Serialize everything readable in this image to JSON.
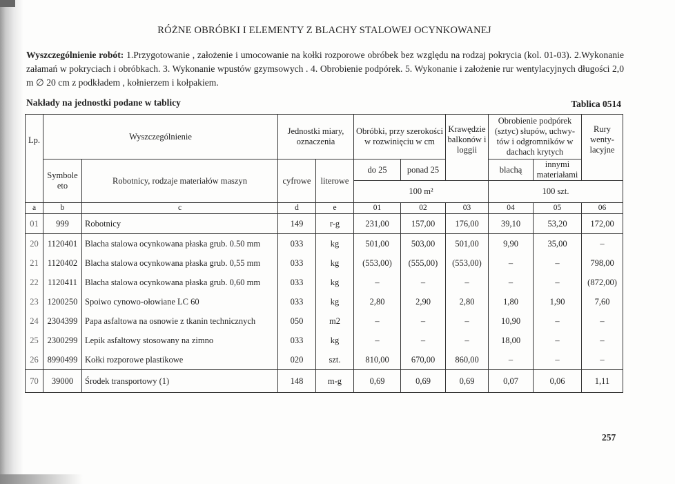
{
  "title": "RÓŻNE OBRÓBKI I ELEMENTY Z BLACHY STALOWEJ OCYNKOWANEJ",
  "description": {
    "label": "Wyszczególnienie robót:",
    "text": " 1.Przygotowanie , założenie i umocowanie na kołki rozporowe obróbek bez względu na rodzaj pokrycia (kol. 01-03). 2.Wykonanie załamań w pokryciach i obróbkach. 3. Wykonanie wpustów gzymsowych . 4. Obrobienie podpórek. 5. Wykonanie i założenie rur wentylacyjnych długości 2,0 m ∅ 20 cm z podkładem , kołnierzem i kołpakiem."
  },
  "naklady": "Nakłady na jednostki podane w tablicy",
  "tablica": "Tablica 0514",
  "header": {
    "lp": "Lp.",
    "wyszczegolnienie": "Wyszczególnienie",
    "jednostki": "Jednostki miary, oznaczenia",
    "obrobki": "Obróbki, przy szerokości w rozwinięciu w cm",
    "krawedzie": "Krawędzie balkonów i loggii",
    "obrobienie": "Obrobienie podpórek (sztyc) słupów, uchwy-tów i odgromników w dachach krytych",
    "rury": "Rury wenty-lacyjne",
    "symbole": "Symbole eto",
    "robotnicy": "Robotnicy, rodzaje materiałów maszyn",
    "cyfrowe": "cyfrowe",
    "literowe": "literowe",
    "do25": "do 25",
    "ponad25": "ponad 25",
    "blacha": "blachą",
    "innymi": "innymi materiałami",
    "unit_m2": "100 m²",
    "unit_szt": "100 szt."
  },
  "letters": [
    "a",
    "b",
    "c",
    "d",
    "e",
    "01",
    "02",
    "03",
    "04",
    "05",
    "06"
  ],
  "rows": [
    [
      "01",
      "999",
      "Robotnicy",
      "149",
      "r-g",
      "231,00",
      "157,00",
      "176,00",
      "39,10",
      "53,20",
      "172,00"
    ],
    [
      "20",
      "1120401",
      "Blacha stalowa ocynkowana płaska grub. 0.50 mm",
      "033",
      "kg",
      "501,00",
      "503,00",
      "501,00",
      "9,90",
      "35,00",
      "–"
    ],
    [
      "21",
      "1120402",
      "Blacha stalowa ocynkowana płaska grub. 0,55 mm",
      "033",
      "kg",
      "(553,00)",
      "(555,00)",
      "(553,00)",
      "–",
      "–",
      "798,00"
    ],
    [
      "22",
      "1120411",
      "Blacha stalowa ocynkowana płaska grub. 0,60 mm",
      "033",
      "kg",
      "–",
      "–",
      "–",
      "–",
      "–",
      "(872,00)"
    ],
    [
      "23",
      "1200250",
      "Spoiwo cynowo-ołowiane LC 60",
      "033",
      "kg",
      "2,80",
      "2,90",
      "2,80",
      "1,80",
      "1,90",
      "7,60"
    ],
    [
      "24",
      "2304399",
      "Papa asfaltowa na osnowie z tkanin technicznych",
      "050",
      "m2",
      "–",
      "–",
      "–",
      "10,90",
      "–",
      "–"
    ],
    [
      "25",
      "2300299",
      "Lepik asfaltowy stosowany na zimno",
      "033",
      "kg",
      "–",
      "–",
      "–",
      "18,00",
      "–",
      "–"
    ],
    [
      "26",
      "8990499",
      "Kołki rozporowe plastikowe",
      "020",
      "szt.",
      "810,00",
      "670,00",
      "860,00",
      "–",
      "–",
      "–"
    ],
    [
      "70",
      "39000",
      "Środek transportowy (1)",
      "148",
      "m-g",
      "0,69",
      "0,69",
      "0,69",
      "0,07",
      "0,06",
      "1,11"
    ]
  ],
  "page_number": "257"
}
